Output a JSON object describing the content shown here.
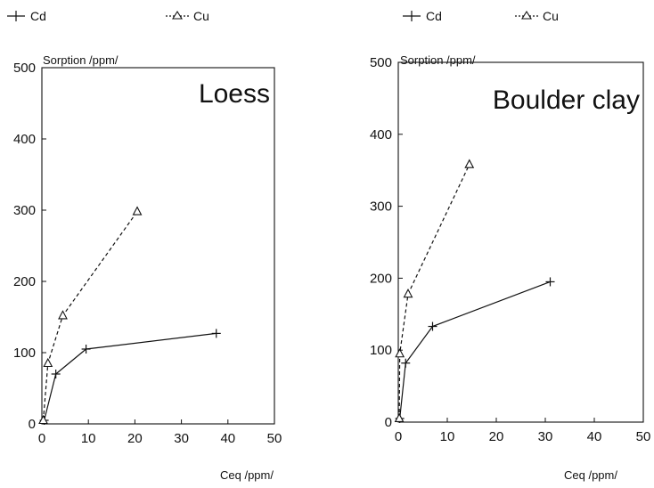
{
  "chart_data": [
    {
      "type": "line",
      "title": "Loess",
      "xlabel": "Ceq /ppm/",
      "ylabel": "Sorption /ppm/",
      "xlim": [
        0,
        50
      ],
      "ylim": [
        0,
        500
      ],
      "xticks": [
        0,
        10,
        20,
        30,
        40,
        50
      ],
      "yticks": [
        0,
        100,
        200,
        300,
        400,
        500
      ],
      "grid": false,
      "legend": "top",
      "series": [
        {
          "name": "Cd",
          "marker": "plus",
          "line": "solid",
          "color": "#111111",
          "x": [
            0.5,
            3,
            9.5,
            37.5
          ],
          "y": [
            5,
            70,
            105,
            127
          ]
        },
        {
          "name": "Cu",
          "marker": "triangle",
          "line": "dashed",
          "color": "#111111",
          "x": [
            0.3,
            1.3,
            4.5,
            20.5
          ],
          "y": [
            5,
            85,
            152,
            298
          ]
        }
      ]
    },
    {
      "type": "line",
      "title": "Boulder clay",
      "xlabel": "Ceq /ppm/",
      "ylabel": "Sorption /ppm/",
      "xlim": [
        0,
        50
      ],
      "ylim": [
        0,
        500
      ],
      "xticks": [
        0,
        10,
        20,
        30,
        40,
        50
      ],
      "yticks": [
        0,
        100,
        200,
        300,
        400,
        500
      ],
      "grid": false,
      "legend": "top",
      "series": [
        {
          "name": "Cd",
          "marker": "plus",
          "line": "solid",
          "color": "#111111",
          "x": [
            0.3,
            1.5,
            7,
            31
          ],
          "y": [
            5,
            82,
            133,
            195
          ]
        },
        {
          "name": "Cu",
          "marker": "triangle",
          "line": "dashed",
          "color": "#111111",
          "x": [
            0.2,
            0.3,
            2,
            14.5
          ],
          "y": [
            5,
            95,
            178,
            358
          ]
        }
      ]
    }
  ]
}
